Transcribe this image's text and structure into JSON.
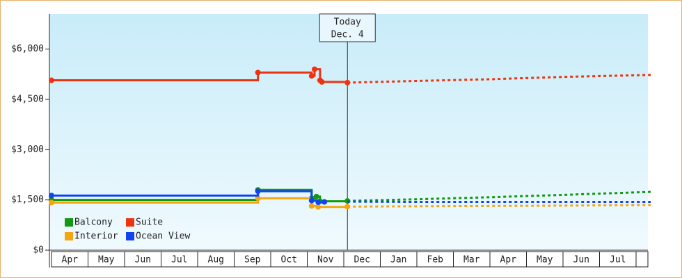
{
  "chart_data": {
    "type": "step-line",
    "annotation": {
      "line1": "Today",
      "line2": "Dec. 4",
      "x": 8.1
    },
    "categories": [
      "Apr",
      "May",
      "Jun",
      "Jul",
      "Aug",
      "Sep",
      "Oct",
      "Nov",
      "Dec",
      "Jan",
      "Feb",
      "Mar",
      "Apr",
      "May",
      "Jun",
      "Jul"
    ],
    "xlim": [
      0,
      16.4
    ],
    "ylim": [
      0,
      7050
    ],
    "yticks": [
      {
        "value": 0,
        "label": "$0"
      },
      {
        "value": 1500,
        "label": "$1,500"
      },
      {
        "value": 3000,
        "label": "$3,000"
      },
      {
        "value": 4500,
        "label": "$4,500"
      },
      {
        "value": 6000,
        "label": "$6,000"
      }
    ],
    "legend_position": "lower-left",
    "series": [
      {
        "name": "Balcony",
        "color": "#119911",
        "x": [
          0,
          5.65,
          7.12,
          7.25,
          7.35,
          8.1
        ],
        "values": [
          1500,
          1800,
          1550,
          1600,
          1460,
          1470
        ],
        "forecast_x": [
          8.1,
          10,
          12,
          14,
          16.4
        ],
        "forecast_values": [
          1470,
          1520,
          1580,
          1650,
          1740
        ]
      },
      {
        "name": "Suite",
        "color": "#ee3311",
        "x": [
          0,
          5.65,
          7.12,
          7.2,
          7.35,
          7.4,
          8.1
        ],
        "values": [
          5070,
          5300,
          5200,
          5400,
          5070,
          5020,
          5000
        ],
        "forecast_x": [
          8.1,
          10,
          12,
          14,
          16.4
        ],
        "forecast_values": [
          5000,
          5050,
          5100,
          5170,
          5230
        ]
      },
      {
        "name": "Interior",
        "color": "#f5a511",
        "x": [
          0,
          5.65,
          7.12,
          7.3,
          8.1
        ],
        "values": [
          1420,
          1550,
          1320,
          1290,
          1300
        ],
        "forecast_x": [
          8.1,
          10,
          12,
          14,
          16.4
        ],
        "forecast_values": [
          1300,
          1310,
          1320,
          1330,
          1350
        ]
      },
      {
        "name": "Ocean View",
        "color": "#1144ee",
        "x": [
          0,
          5.65,
          7.12,
          7.3,
          7.47
        ],
        "values": [
          1630,
          1760,
          1480,
          1430,
          1440
        ],
        "forecast_x": [
          8.1,
          10,
          12,
          14,
          16.4
        ],
        "forecast_values": [
          1450,
          1440,
          1440,
          1440,
          1440
        ]
      }
    ]
  }
}
